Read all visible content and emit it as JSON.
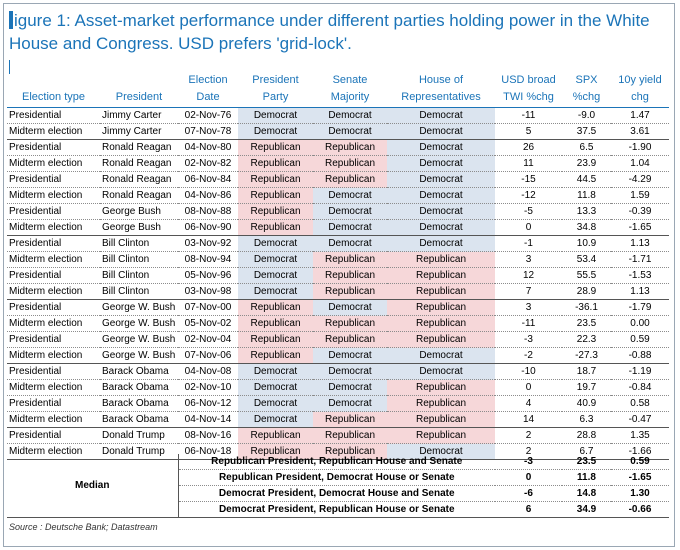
{
  "title": "igure 1: Asset-market performance under different parties holding power in the White House and Congress. USD prefers 'grid-lock'.",
  "headers": {
    "election_type": "Election type",
    "president": "President",
    "election_date": [
      "Election",
      "Date"
    ],
    "president_party": [
      "President",
      "Party"
    ],
    "senate_majority": [
      "Senate",
      "Majority"
    ],
    "house": [
      "House of",
      "Representatives"
    ],
    "usd": [
      "USD broad",
      "TWI %chg"
    ],
    "spx": [
      "SPX",
      "%chg"
    ],
    "yield": [
      "10y yield",
      "chg"
    ]
  },
  "rows": [
    {
      "type": "Presidential",
      "president": "Jimmy Carter",
      "date": "02-Nov-76",
      "pres_party": "Democrat",
      "senate": "Democrat",
      "house": "Democrat",
      "usd": "-11",
      "spx": "-9.0",
      "yield": "1.47"
    },
    {
      "type": "Midterm election",
      "president": "Jimmy Carter",
      "date": "07-Nov-78",
      "pres_party": "Democrat",
      "senate": "Democrat",
      "house": "Democrat",
      "usd": "5",
      "spx": "37.5",
      "yield": "3.61"
    },
    {
      "type": "Presidential",
      "president": "Ronald Reagan",
      "date": "04-Nov-80",
      "pres_party": "Republican",
      "senate": "Republican",
      "house": "Democrat",
      "usd": "26",
      "spx": "6.5",
      "yield": "-1.90"
    },
    {
      "type": "Midterm election",
      "president": "Ronald Reagan",
      "date": "02-Nov-82",
      "pres_party": "Republican",
      "senate": "Republican",
      "house": "Democrat",
      "usd": "11",
      "spx": "23.9",
      "yield": "1.04"
    },
    {
      "type": "Presidential",
      "president": "Ronald Reagan",
      "date": "06-Nov-84",
      "pres_party": "Republican",
      "senate": "Republican",
      "house": "Democrat",
      "usd": "-15",
      "spx": "44.5",
      "yield": "-4.29"
    },
    {
      "type": "Midterm election",
      "president": "Ronald Reagan",
      "date": "04-Nov-86",
      "pres_party": "Republican",
      "senate": "Democrat",
      "house": "Democrat",
      "usd": "-12",
      "spx": "11.8",
      "yield": "1.59"
    },
    {
      "type": "Presidential",
      "president": "George Bush",
      "date": "08-Nov-88",
      "pres_party": "Republican",
      "senate": "Democrat",
      "house": "Democrat",
      "usd": "-5",
      "spx": "13.3",
      "yield": "-0.39"
    },
    {
      "type": "Midterm election",
      "president": "George Bush",
      "date": "06-Nov-90",
      "pres_party": "Republican",
      "senate": "Democrat",
      "house": "Democrat",
      "usd": "0",
      "spx": "34.8",
      "yield": "-1.65"
    },
    {
      "type": "Presidential",
      "president": "Bill Clinton",
      "date": "03-Nov-92",
      "pres_party": "Democrat",
      "senate": "Democrat",
      "house": "Democrat",
      "usd": "-1",
      "spx": "10.9",
      "yield": "1.13"
    },
    {
      "type": "Midterm election",
      "president": "Bill Clinton",
      "date": "08-Nov-94",
      "pres_party": "Democrat",
      "senate": "Republican",
      "house": "Republican",
      "usd": "3",
      "spx": "53.4",
      "yield": "-1.71"
    },
    {
      "type": "Presidential",
      "president": "Bill Clinton",
      "date": "05-Nov-96",
      "pres_party": "Democrat",
      "senate": "Republican",
      "house": "Republican",
      "usd": "12",
      "spx": "55.5",
      "yield": "-1.53"
    },
    {
      "type": "Midterm election",
      "president": "Bill Clinton",
      "date": "03-Nov-98",
      "pres_party": "Democrat",
      "senate": "Republican",
      "house": "Republican",
      "usd": "7",
      "spx": "28.9",
      "yield": "1.13"
    },
    {
      "type": "Presidential",
      "president": "George W. Bush",
      "date": "07-Nov-00",
      "pres_party": "Republican",
      "senate": "Democrat",
      "house": "Republican",
      "usd": "3",
      "spx": "-36.1",
      "yield": "-1.79"
    },
    {
      "type": "Midterm election",
      "president": "George W. Bush",
      "date": "05-Nov-02",
      "pres_party": "Republican",
      "senate": "Republican",
      "house": "Republican",
      "usd": "-11",
      "spx": "23.5",
      "yield": "0.00"
    },
    {
      "type": "Presidential",
      "president": "George W. Bush",
      "date": "02-Nov-04",
      "pres_party": "Republican",
      "senate": "Republican",
      "house": "Republican",
      "usd": "-3",
      "spx": "22.3",
      "yield": "0.59"
    },
    {
      "type": "Midterm election",
      "president": "George W. Bush",
      "date": "07-Nov-06",
      "pres_party": "Republican",
      "senate": "Democrat",
      "house": "Democrat",
      "usd": "-2",
      "spx": "-27.3",
      "yield": "-0.88"
    },
    {
      "type": "Presidential",
      "president": "Barack Obama",
      "date": "04-Nov-08",
      "pres_party": "Democrat",
      "senate": "Democrat",
      "house": "Democrat",
      "usd": "-10",
      "spx": "18.7",
      "yield": "-1.19"
    },
    {
      "type": "Midterm election",
      "president": "Barack Obama",
      "date": "02-Nov-10",
      "pres_party": "Democrat",
      "senate": "Democrat",
      "house": "Republican",
      "usd": "0",
      "spx": "19.7",
      "yield": "-0.84"
    },
    {
      "type": "Presidential",
      "president": "Barack Obama",
      "date": "06-Nov-12",
      "pres_party": "Democrat",
      "senate": "Democrat",
      "house": "Republican",
      "usd": "4",
      "spx": "40.9",
      "yield": "0.58"
    },
    {
      "type": "Midterm election",
      "president": "Barack Obama",
      "date": "04-Nov-14",
      "pres_party": "Democrat",
      "senate": "Republican",
      "house": "Republican",
      "usd": "14",
      "spx": "6.3",
      "yield": "-0.47"
    },
    {
      "type": "Presidential",
      "president": "Donald Trump",
      "date": "08-Nov-16",
      "pres_party": "Republican",
      "senate": "Republican",
      "house": "Republican",
      "usd": "2",
      "spx": "28.8",
      "yield": "1.35"
    },
    {
      "type": "Midterm election",
      "president": "Donald Trump",
      "date": "06-Nov-18",
      "pres_party": "Republican",
      "senate": "Republican",
      "house": "Democrat",
      "usd": "2",
      "spx": "6.7",
      "yield": "-1.66"
    }
  ],
  "median": {
    "label": "Median",
    "rows": [
      {
        "desc": "Republican President, Republican House and Senate",
        "usd": "-3",
        "spx": "23.5",
        "yield": "0.59"
      },
      {
        "desc": "Republican President, Democrat House or Senate",
        "usd": "0",
        "spx": "11.8",
        "yield": "-1.65"
      },
      {
        "desc": "Democrat President, Democrat House and Senate",
        "usd": "-6",
        "spx": "14.8",
        "yield": "1.30"
      },
      {
        "desc": "Democrat President, Republican House or Senate",
        "usd": "6",
        "spx": "34.9",
        "yield": "-0.66"
      }
    ]
  },
  "source": "Source : Deutsche Bank; Datastream",
  "colors": {
    "title": "#1b74b8",
    "democrat_fill": "#dbe4ef",
    "republican_fill": "#f6d7d9"
  }
}
